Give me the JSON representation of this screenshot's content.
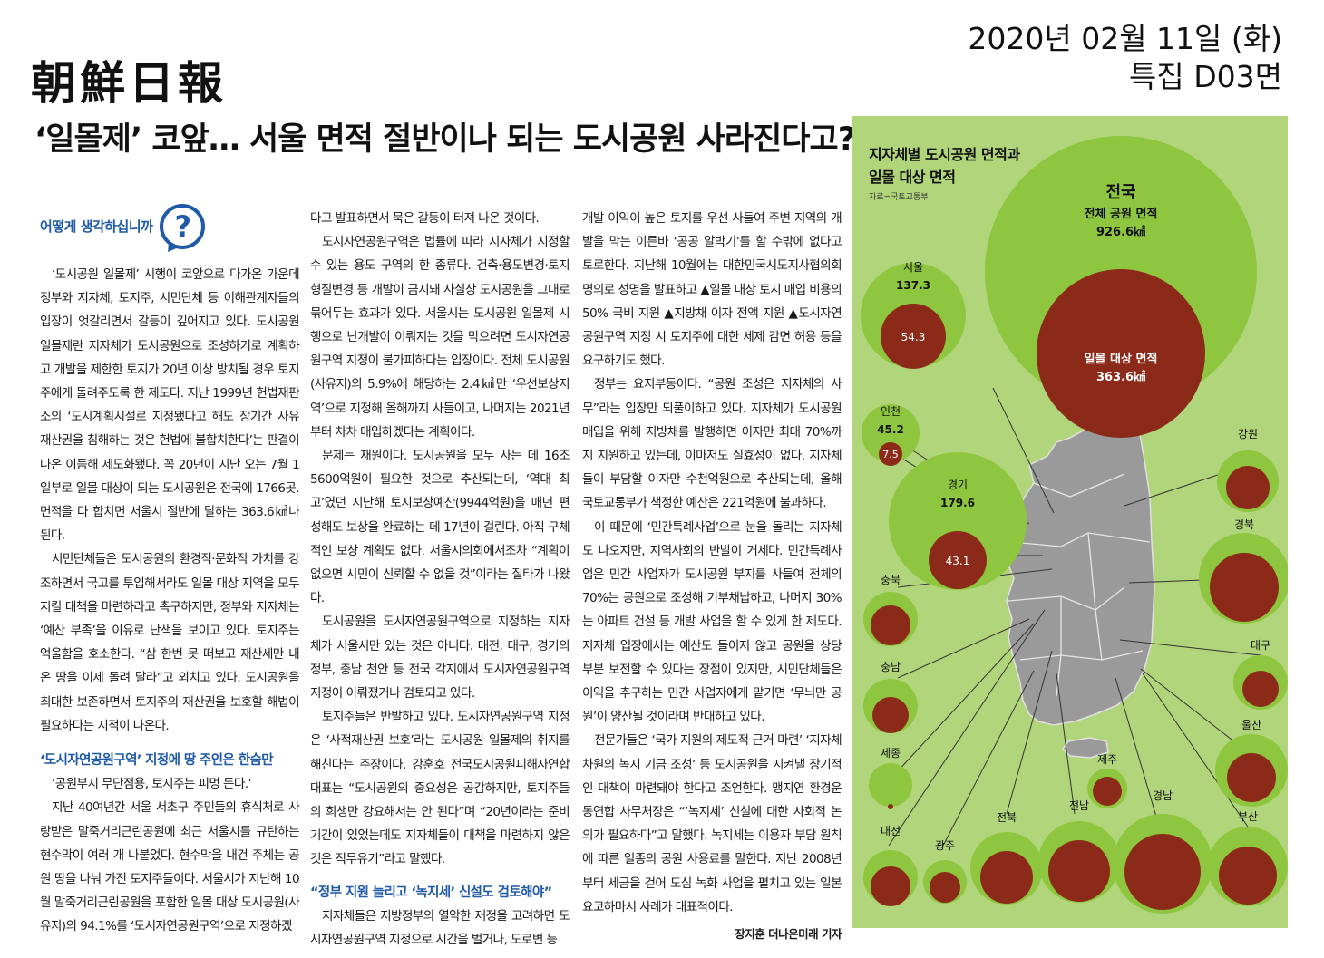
{
  "masthead": "朝鮮日報",
  "dateline": {
    "date": "2020년 02월 11일 (화)",
    "page": "특집 D03면"
  },
  "headline": "‘일몰제’ 코앞… 서울 면적 절반이나 되는 도시공원 사라진다고?",
  "opinion_label": "어떻게 생각하십니까",
  "columns": {
    "col1": {
      "p1": "‘도시공원 일몰제’ 시행이 코앞으로 다가온 가운데 정부와 지자체, 토지주, 시민단체 등 이해관계자들의 입장이 엇갈리면서 갈등이 깊어지고 있다. 도시공원 일몰제란 지자체가 도시공원으로 조성하기로 계획하고 개발을 제한한 토지가 20년 이상 방치될 경우 토지주에게 돌려주도록 한 제도다. 지난 1999년 헌법재판소의 ‘도시계획시설로 지정됐다고 해도 장기간 사유 재산권을 침해하는 것은 헌법에 불합치한다’는 판결이 나온 이듬해 제도화됐다. 꼭 20년이 지난 오는 7월 1일부로 일몰 대상이 되는 도시공원은 전국에 1766곳. 면적을 다 합치면 서울시 절반에 달하는 363.6㎢나 된다.",
      "p2": "시민단체들은 도시공원의 환경적·문화적 가치를 강조하면서 국고를 투입해서라도 일몰 대상 지역을 모두 지킬 대책을 마련하라고 촉구하지만, 정부와 지자체는 ‘예산 부족’을 이유로 난색을 보이고 있다. 토지주는 억울함을 호소한다. “삼 한번 못 떠보고 재산세만 내온 땅을 이제 돌려 달라”고 외치고 있다. 도시공원을 최대한 보존하면서 토지주의 재산권을 보호할 해법이 필요하다는 지적이 나온다.",
      "sub1": "‘도시자연공원구역’ 지정에 땅 주인은 한숨만",
      "p3": "‘공원부지 무단점용, 토지주는 피멍 든다.’",
      "p4": "지난 40여년간 서울 서초구 주민들의 휴식처로 사랑받은 말죽거리근린공원에 최근 서울시를 규탄하는 현수막이 여러 개 나붙었다. 현수막을 내건 주체는 공원 땅을 나눠 가진 토지주들이다. 서울시가 지난해 10월 말죽거리근린공원을 포함한 일몰 대상 도시공원(사유지)의 94.1%를 ‘도시자연공원구역’으로 지정하겠"
    },
    "col2": {
      "p1": "다고 발표하면서 묵은 갈등이 터져 나온 것이다.",
      "p2": "도시자연공원구역은 법률에 따라 지자체가 지정할 수 있는 용도 구역의 한 종류다. 건축·용도변경·토지 형질변경 등 개발이 금지돼 사실상 도시공원을 그대로 묶어두는 효과가 있다. 서울시는 도시공원 일몰제 시행으로 난개발이 이뤄지는 것을 막으려면 도시자연공원구역 지정이 불가피하다는 입장이다. 전체 도시공원(사유지)의 5.9%에 해당하는 2.4㎢만 ‘우선보상지역’으로 지정해 올해까지 사들이고, 나머지는 2021년부터 차차 매입하겠다는 계획이다.",
      "p3": "문제는 재원이다. 도시공원을 모두 사는 데 16조 5600억원이 필요한 것으로 추산되는데, ‘역대 최고’였던 지난해 토지보상예산(9944억원)을 매년 편성해도 보상을 완료하는 데 17년이 걸린다. 아직 구체적인 보상 계획도 없다. 서울시의회에서조차 “계획이 없으면 시민이 신뢰할 수 없을 것”이라는 질타가 나왔다.",
      "p4": "도시공원을 도시자연공원구역으로 지정하는 지자체가 서울시만 있는 것은 아니다. 대전, 대구, 경기의 정부, 충남 천안 등 전국 각지에서 도시자연공원구역 지정이 이뤄졌거나 검토되고 있다.",
      "p5": "토지주들은 반발하고 있다. 도시자연공원구역 지정은 ‘사적재산권 보호’라는 도시공원 일몰제의 취지를 해친다는 주장이다. 강훈호 전국도시공원피해자연합 대표는 “도시공원의 중요성은 공감하지만, 토지주들의 희생만 강요해서는 안 된다”며 “20년이라는 준비 기간이 있었는데도 지자체들이 대책을 마련하지 않은 것은 직무유기”라고 말했다.",
      "sub2": "“정부 지원 늘리고 ‘녹지세’ 신설도 검토해야”",
      "p6": "지자체들은 지방정부의 열악한 재정을 고려하면 도시자연공원구역 지정으로 시간을 벌거나, 도로변 등"
    },
    "col3": {
      "p1": "개발 이익이 높은 토지를 우선 사들여 주변 지역의 개발을 막는 이른바 ‘공공 알박기’를 할 수밖에 없다고 토로한다. 지난해 10월에는 대한민국시도지사협의회 명의로 성명을 발표하고 ▲일몰 대상 토지 매입 비용의 50% 국비 지원 ▲지방채 이자 전액 지원 ▲도시자연공원구역 지정 시 토지주에 대한 세제 감면 허용 등을 요구하기도 했다.",
      "p2": "정부는 요지부동이다. “공원 조성은 지자체의 사무”라는 입장만 되풀이하고 있다. 지자체가 도시공원 매입을 위해 지방채를 발행하면 이자만 최대 70%까지 지원하고 있는데, 이마저도 실효성이 없다. 지자체들이 부담할 이자만 수천억원으로 추산되는데, 올해 국토교통부가 책정한 예산은 221억원에 불과하다.",
      "p3": "이 때문에 ‘민간특례사업’으로 눈을 돌리는 지자체도 나오지만, 지역사회의 반발이 거세다. 민간특례사업은 민간 사업자가 도시공원 부지를 사들여 전체의 70%는 공원으로 조성해 기부채납하고, 나머지 30%는 아파트 건설 등 개발 사업을 할 수 있게 한 제도다. 지자체 입장에서는 예산도 들이지 않고 공원을 상당 부분 보전할 수 있다는 장점이 있지만, 시민단체들은 이익을 추구하는 민간 사업자에게 맡기면 ‘무늬만 공원’이 양산될 것이라며 반대하고 있다.",
      "p4": "전문가들은 ‘국가 지원의 제도적 근거 마련’ ‘지자체 차원의 녹지 기금 조성’ 등 도시공원을 지켜낼 장기적인 대책이 마련돼야 한다고 조언한다. 맹지연 환경운동연합 사무처장은 “‘녹지세’ 신설에 대한 사회적 논의가 필요하다”고 말했다. 녹지세는 이용자 부담 원칙에 따른 일종의 공원 사용료를 말한다. 지난 2008년부터 세금을 걷어 도심 녹화 사업을 펼치고 있는 일본 요코하마시 사례가 대표적이다.",
      "byline": "장지훈 더나은미래 기자"
    }
  },
  "infographic": {
    "title_line1": "지자체별 도시공원 면적과",
    "title_line2": "일몰 대상 면적",
    "source": "자료=국토교통부",
    "colors": {
      "background": "#b1d57a",
      "total_area": "#8ec63f",
      "sunset_area": "#8b2a18",
      "map": "#9a9a9a"
    },
    "national": {
      "name": "전국",
      "total_label": "전체 공원 면적",
      "total": "926.6㎢",
      "sunset_label": "일몰 대상 면적",
      "sunset": "363.6㎢"
    },
    "regions": {
      "seoul": {
        "name": "서울",
        "total": "137.3",
        "sunset": "54.3"
      },
      "incheon": {
        "name": "인천",
        "total": "45.2",
        "sunset": "7.5"
      },
      "gyeonggi": {
        "name": "경기",
        "total": "179.6",
        "sunset": "43.1"
      },
      "gangwon": {
        "name": "강원"
      },
      "gyeongbuk": {
        "name": "경북"
      },
      "chungbuk": {
        "name": "충북"
      },
      "chungnam": {
        "name": "충남"
      },
      "daegu": {
        "name": "대구"
      },
      "ulsan": {
        "name": "울산"
      },
      "sejong": {
        "name": "세종"
      },
      "jeju": {
        "name": "제주"
      },
      "gyeongnam": {
        "name": "경남"
      },
      "busan": {
        "name": "부산"
      },
      "daejeon": {
        "name": "대전"
      },
      "gwangju": {
        "name": "광주"
      },
      "jeonbuk": {
        "name": "전북"
      },
      "jeonnam": {
        "name": "전남"
      }
    }
  }
}
